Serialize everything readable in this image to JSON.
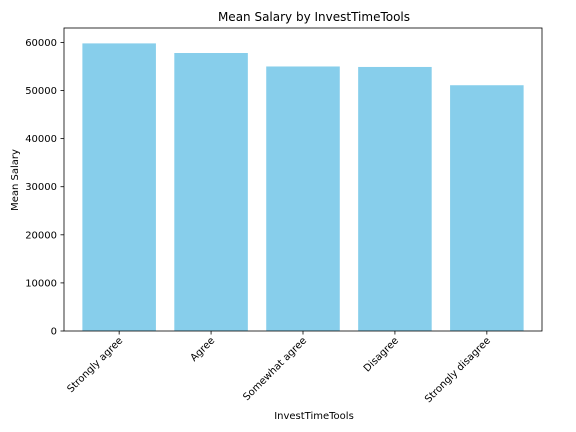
{
  "chart_data": {
    "type": "bar",
    "title": "Mean Salary by InvestTimeTools",
    "xlabel": "InvestTimeTools",
    "ylabel": "Mean Salary",
    "categories": [
      "Strongly agree",
      "Agree",
      "Somewhat agree",
      "Disagree",
      "Strongly disagree"
    ],
    "values": [
      59800,
      57800,
      55000,
      54900,
      51100
    ],
    "ylim": [
      0,
      63000
    ],
    "yticks": [
      0,
      10000,
      20000,
      30000,
      40000,
      50000,
      60000
    ],
    "bar_color": "#87ceeb",
    "grid": false,
    "legend": "none"
  }
}
